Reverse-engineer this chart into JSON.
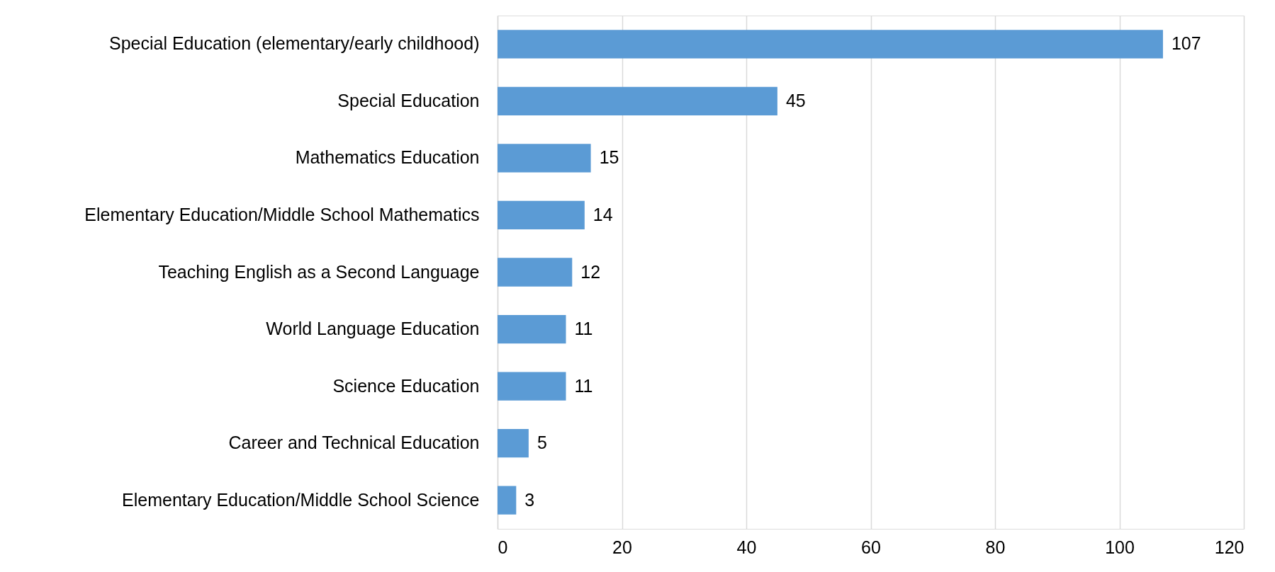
{
  "chart_data": {
    "type": "bar",
    "orientation": "horizontal",
    "categories": [
      "Special Education (elementary/early childhood)",
      "Special Education",
      "Mathematics Education",
      "Elementary Education/Middle School Mathematics",
      "Teaching English as a Second Language",
      "World Language Education",
      "Science Education",
      "Career and Technical Education",
      "Elementary Education/Middle School Science"
    ],
    "values": [
      107,
      45,
      15,
      14,
      12,
      11,
      11,
      5,
      3
    ],
    "color": "#5b9bd5",
    "xlim": [
      0,
      120
    ],
    "xticks": [
      0,
      20,
      40,
      60,
      80,
      100,
      120
    ],
    "grid": "x",
    "data_labels": true
  }
}
